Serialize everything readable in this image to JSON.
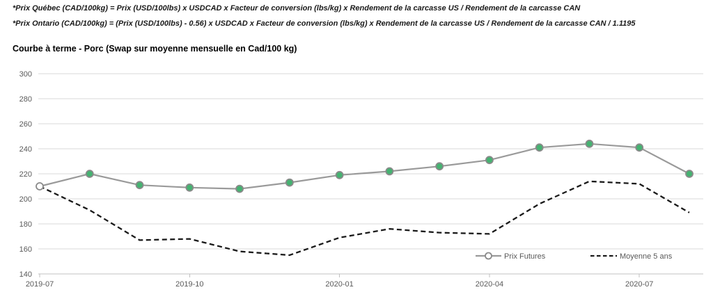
{
  "notes": {
    "line1": "*Prix Québec (CAD/100kg) = Prix (USD/100lbs) x USDCAD x Facteur de conversion (lbs/kg) x Rendement de la carcasse US / Rendement de la carcasse CAN",
    "line2": "*Prix Ontario (CAD/100kg) = (Prix (USD/100lbs) - 0.56) x USDCAD x Facteur de conversion (lbs/kg) x Rendement de la carcasse US / Rendement de la carcasse CAN / 1.1195"
  },
  "chart_title": "Courbe à terme - Porc (Swap sur moyenne mensuelle en Cad/100 kg)",
  "chart_data": {
    "type": "line",
    "x": [
      "2019-07",
      "2019-08",
      "2019-09",
      "2019-10",
      "2019-11",
      "2019-12",
      "2020-01",
      "2020-02",
      "2020-03",
      "2020-04",
      "2020-05",
      "2020-06",
      "2020-07",
      "2020-08"
    ],
    "xticks": [
      "2019-07",
      "2019-10",
      "2020-01",
      "2020-04",
      "2020-07"
    ],
    "series": [
      {
        "name": "Prix Futures",
        "values": [
          210,
          220,
          211,
          209,
          208,
          213,
          219,
          222,
          226,
          231,
          241,
          244,
          241,
          220
        ],
        "style": "solid-gray-line-green-circle-markers-first-marker-open"
      },
      {
        "name": "Moyenne 5 ans",
        "values": [
          210,
          191,
          167,
          168,
          158,
          155,
          169,
          176,
          173,
          172,
          196,
          214,
          212,
          189
        ],
        "style": "dashed-black-line-no-markers"
      }
    ],
    "ylim": [
      140,
      300
    ],
    "ytick_step": 20,
    "grid": true,
    "legend_position": "inside-bottom-right"
  },
  "colors": {
    "futures_line": "#9a9a9a",
    "marker_fill": "#45b271",
    "marker_stroke": "#8a8a8a",
    "first_marker_fill": "#ffffff",
    "moyenne_line": "#1a1a1a",
    "gridline": "#dadada",
    "axis_line": "#c0c0c0",
    "axis_text": "#595959",
    "legend_text": "#595959",
    "note_text": "#1a1a1a"
  },
  "legend": {
    "futures_label": "Prix Futures",
    "moyenne_label": "Moyenne 5 ans"
  }
}
